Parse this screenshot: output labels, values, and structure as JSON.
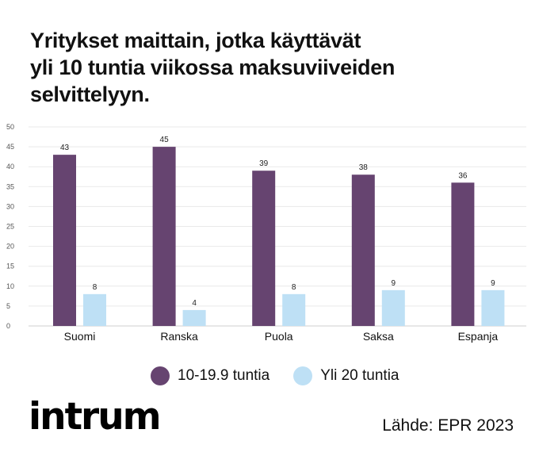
{
  "title_lines": [
    "Yritykset maittain, jotka käyttävät",
    "yli 10 tuntia viikossa maksuviiveiden",
    "selvittelyyn."
  ],
  "chart_data": {
    "type": "bar",
    "title": "Yritykset maittain, jotka käyttävät yli 10 tuntia viikossa maksuviiveiden selvittelyyn.",
    "categories": [
      "Suomi",
      "Ranska",
      "Puola",
      "Saksa",
      "Espanja"
    ],
    "series": [
      {
        "name": "10-19.9 tuntia",
        "values": [
          43,
          45,
          39,
          38,
          36
        ],
        "color": "#664470"
      },
      {
        "name": "Yli 20 tuntia",
        "values": [
          8,
          4,
          8,
          9,
          9
        ],
        "color": "#bee0f5"
      }
    ],
    "ylim": [
      0,
      50
    ],
    "yticks": [
      0,
      5,
      10,
      15,
      20,
      25,
      30,
      35,
      40,
      45,
      50
    ],
    "grid": true,
    "legend": "bottom"
  },
  "brand": {
    "logo_text": "intrum"
  },
  "source": "Lähde: EPR 2023"
}
